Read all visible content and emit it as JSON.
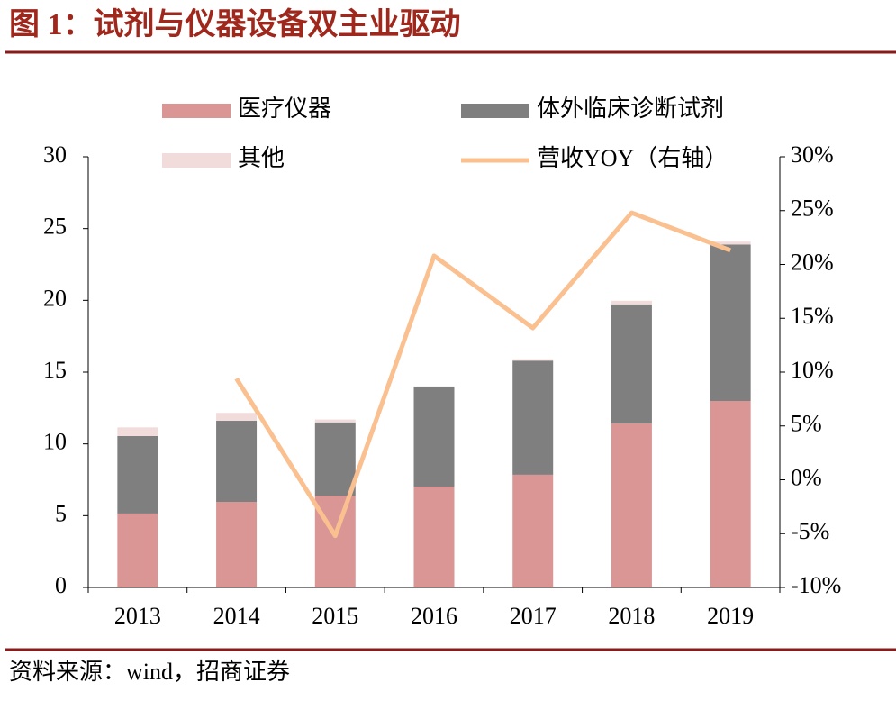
{
  "chart_data": {
    "type": "bar",
    "stacked": true,
    "title": "图 1：试剂与仪器设备双主业驱动",
    "source": "资料来源：wind，招商证券",
    "categories": [
      "2013",
      "2014",
      "2015",
      "2016",
      "2017",
      "2018",
      "2019"
    ],
    "series": [
      {
        "name": "医疗仪器",
        "color": "#d99694",
        "values": [
          5.15,
          5.96,
          6.4,
          7.03,
          7.85,
          11.42,
          12.99
        ]
      },
      {
        "name": "体外临床诊断试剂",
        "color": "#7f7f7f",
        "values": [
          5.4,
          5.65,
          5.1,
          6.97,
          7.95,
          8.3,
          10.9
        ]
      },
      {
        "name": "其他",
        "color": "#f2dcdb",
        "values": [
          0.6,
          0.55,
          0.2,
          0,
          0.1,
          0.25,
          0.2
        ]
      },
      {
        "name": "营收YOY（右轴）",
        "color": "#fac090",
        "type": "line",
        "axis": "y2",
        "values": [
          null,
          9.4,
          -5.2,
          20.8,
          14.1,
          24.8,
          21.3
        ]
      }
    ],
    "ylim": [
      0,
      30
    ],
    "yticks": [
      0,
      5,
      10,
      15,
      20,
      25,
      30
    ],
    "y2lim": [
      -10,
      30
    ],
    "y2ticks": [
      {
        "value": -10,
        "label": "-10%"
      },
      {
        "value": -5,
        "label": "-5%"
      },
      {
        "value": 0,
        "label": "0%"
      },
      {
        "value": 5,
        "label": "5%"
      },
      {
        "value": 10,
        "label": "10%"
      },
      {
        "value": 15,
        "label": "15%"
      },
      {
        "value": 20,
        "label": "20%"
      },
      {
        "value": 25,
        "label": "25%"
      },
      {
        "value": 30,
        "label": "30%"
      }
    ],
    "grid": false,
    "legend": "top"
  }
}
